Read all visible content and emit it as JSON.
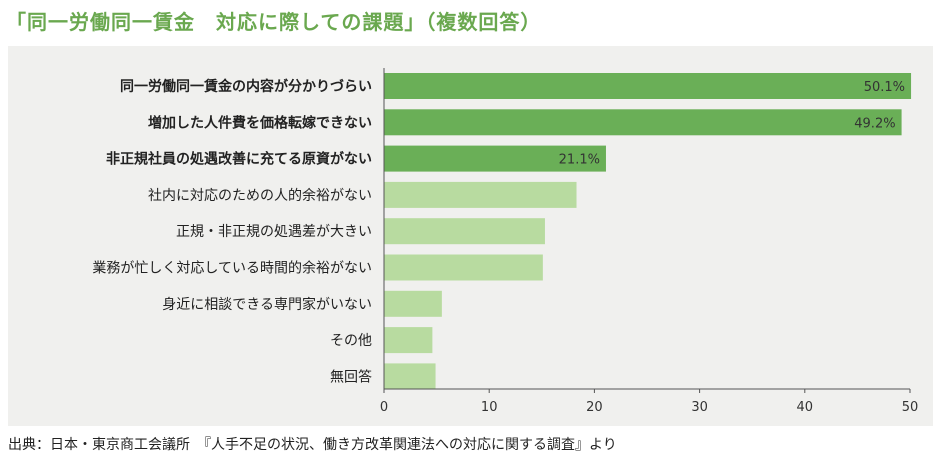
{
  "title": "「同一労働同一賃金　対応に際しての課題」（複数回答）",
  "footer": "出典：日本・東京商工会議所　『人手不足の状況、働き方改革関連法への対応に関する調査』より",
  "colors": {
    "dark_bar": "#6aaf57",
    "light_bar": "#b8dba0",
    "title": "#6aa84f"
  },
  "chart_data": {
    "type": "bar",
    "orientation": "horizontal",
    "categories": [
      "同一労働同一賃金の内容が分かりづらい",
      "増加した人件費を価格転嫁できない",
      "非正規社員の処遇改善に充てる原資がない",
      "社内に対応のための人的余裕がない",
      "正規・非正規の処遇差が大きい",
      "業務が忙しく対応している時間的余裕がない",
      "身近に相談できる専門家がいない",
      "その他",
      "無回答"
    ],
    "values": [
      50.1,
      49.2,
      21.1,
      18.3,
      15.3,
      15.1,
      5.5,
      4.6,
      4.9
    ],
    "value_labels": [
      "50.1%",
      "49.2%",
      "21.1%",
      "",
      "",
      "",
      "",
      "",
      ""
    ],
    "highlighted": [
      true,
      true,
      true,
      false,
      false,
      false,
      false,
      false,
      false
    ],
    "xlim": [
      0,
      50
    ],
    "xticks": [
      "0",
      "10",
      "20",
      "30",
      "40",
      "50"
    ],
    "xlabel": "",
    "ylabel": "",
    "grid": false
  }
}
